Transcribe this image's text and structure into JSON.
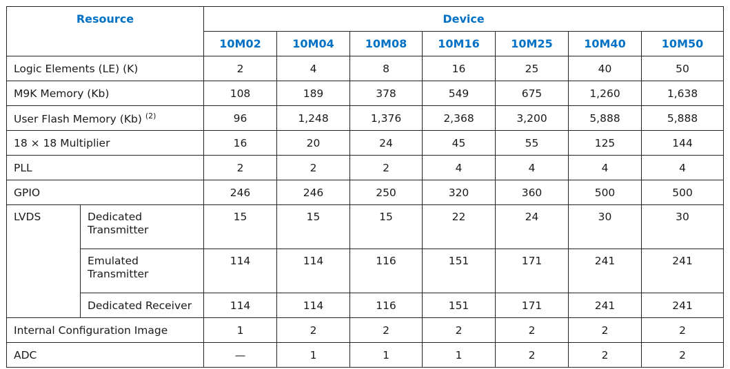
{
  "table": {
    "resource_header": "Resource",
    "device_header": "Device",
    "devices": [
      "10M02",
      "10M04",
      "10M08",
      "10M16",
      "10M25",
      "10M40",
      "10M50"
    ],
    "rows": [
      {
        "label": "Logic Elements (LE) (K)",
        "values": [
          "2",
          "4",
          "8",
          "16",
          "25",
          "40",
          "50"
        ]
      },
      {
        "label": "M9K Memory (Kb)",
        "values": [
          "108",
          "189",
          "378",
          "549",
          "675",
          "1,260",
          "1,638"
        ]
      },
      {
        "label": "User Flash Memory (Kb)",
        "note": "(2)",
        "values": [
          "96",
          "1,248",
          "1,376",
          "2,368",
          "3,200",
          "5,888",
          "5,888"
        ]
      },
      {
        "label": "18 × 18 Multiplier",
        "values": [
          "16",
          "20",
          "24",
          "45",
          "55",
          "125",
          "144"
        ]
      },
      {
        "label": "PLL",
        "values": [
          "2",
          "2",
          "2",
          "4",
          "4",
          "4",
          "4"
        ]
      },
      {
        "label": "GPIO",
        "values": [
          "246",
          "246",
          "250",
          "320",
          "360",
          "500",
          "500"
        ]
      }
    ],
    "lvds": {
      "label": "LVDS",
      "sub_rows": [
        {
          "label": "Dedicated Transmitter",
          "values": [
            "15",
            "15",
            "15",
            "22",
            "24",
            "30",
            "30"
          ]
        },
        {
          "label": "Emulated Transmitter",
          "values": [
            "114",
            "114",
            "116",
            "151",
            "171",
            "241",
            "241"
          ]
        },
        {
          "label": "Dedicated Receiver",
          "values": [
            "114",
            "114",
            "116",
            "151",
            "171",
            "241",
            "241"
          ]
        }
      ]
    },
    "tail_rows": [
      {
        "label": "Internal Configuration Image",
        "values": [
          "1",
          "2",
          "2",
          "2",
          "2",
          "2",
          "2"
        ]
      },
      {
        "label": "ADC",
        "values": [
          "—",
          "1",
          "1",
          "1",
          "2",
          "2",
          "2"
        ]
      }
    ]
  },
  "colors": {
    "header_text": "#0071c5",
    "border": "#222222"
  }
}
